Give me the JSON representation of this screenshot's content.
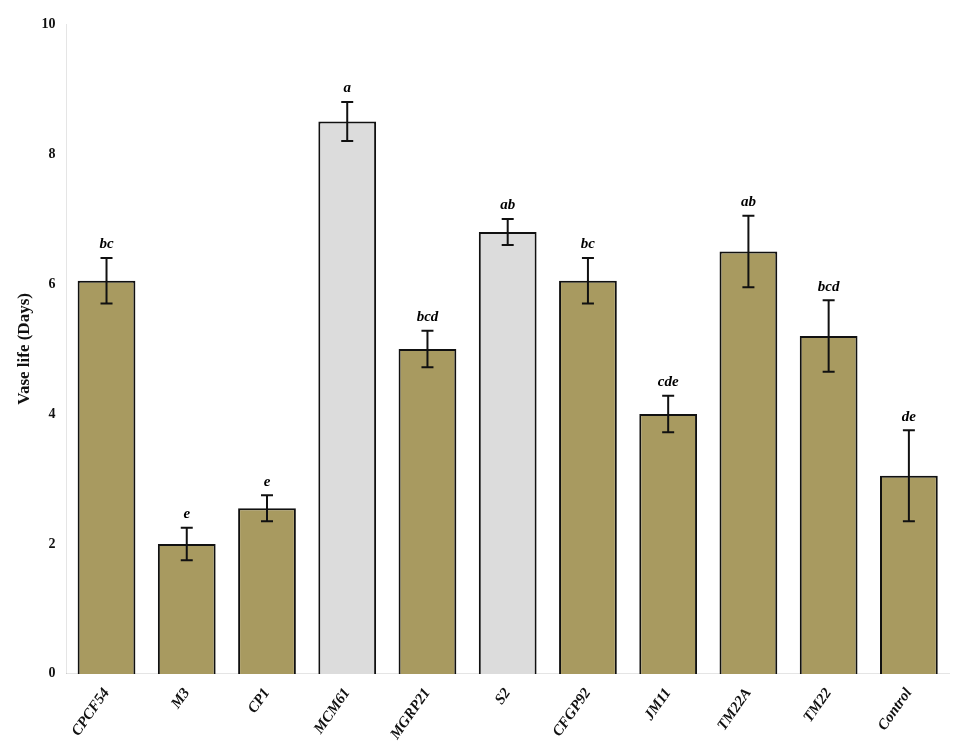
{
  "chart_data": {
    "type": "bar",
    "categories": [
      "CPCF54",
      "M3",
      "CP1",
      "MCM61",
      "MGRP21",
      "S2",
      "CFGP92",
      "JM11",
      "TM22A",
      "TM22",
      "Control"
    ],
    "values": [
      6.05,
      2.0,
      2.55,
      8.5,
      5.0,
      6.8,
      6.05,
      4.0,
      6.5,
      5.2,
      3.05
    ],
    "errors": [
      0.35,
      0.25,
      0.2,
      0.3,
      0.28,
      0.2,
      0.35,
      0.28,
      0.55,
      0.55,
      0.7
    ],
    "stat_labels": [
      "bc",
      "e",
      "e",
      "a",
      "bcd",
      "ab",
      "bc",
      "cde",
      "ab",
      "bcd",
      "de"
    ],
    "colors": [
      "#a89a60",
      "#a89a60",
      "#a89a60",
      "#dcdcdc",
      "#a89a60",
      "#dcdcdc",
      "#a89a60",
      "#a89a60",
      "#a89a60",
      "#a89a60",
      "#a89a60"
    ],
    "ylabel": "Vase life (Days)",
    "ylim": [
      0,
      10
    ],
    "yticks": [
      0,
      2,
      4,
      6,
      8,
      10
    ],
    "grid": false
  }
}
